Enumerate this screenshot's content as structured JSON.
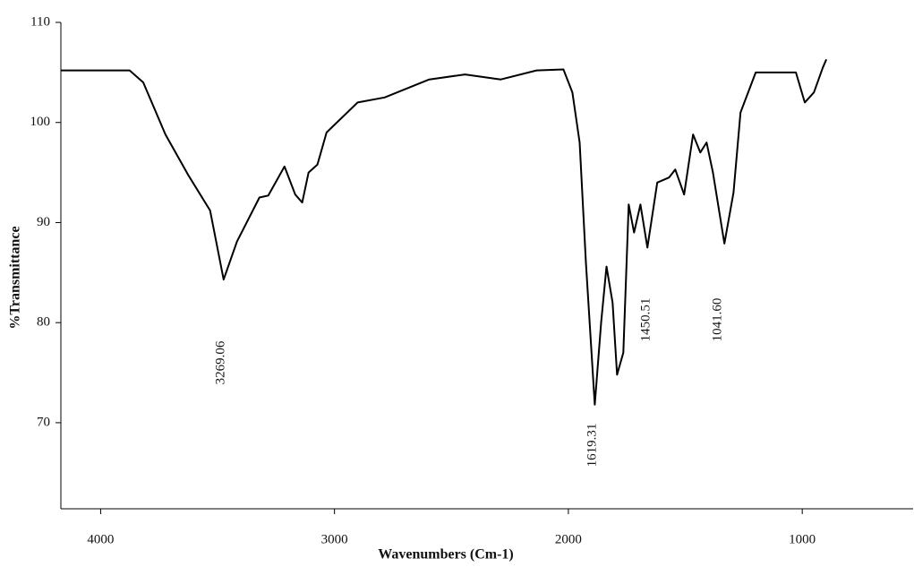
{
  "chart_data": {
    "type": "line",
    "xlabel": "Wavenumbers (Cm-1)",
    "ylabel": "%Transmittance",
    "x": [
      4170,
      3876,
      3818,
      3723,
      3627,
      3532,
      3474,
      3417,
      3321,
      3283,
      3214,
      3168,
      3138,
      3111,
      3073,
      3034,
      2901,
      2786,
      2595,
      2442,
      2289,
      2136,
      2021,
      1983,
      1952,
      1925,
      1887,
      1860,
      1837,
      1811,
      1792,
      1765,
      1742,
      1719,
      1692,
      1662,
      1620,
      1570,
      1543,
      1505,
      1467,
      1436,
      1409,
      1382,
      1333,
      1294,
      1264,
      1199,
      1027,
      989,
      950,
      912,
      897
    ],
    "series": [
      {
        "color": "#000000",
        "values": [
          105.2,
          105.2,
          104,
          98.8,
          94.8,
          91.2,
          84.3,
          88.1,
          92.5,
          92.7,
          95.6,
          92.8,
          92,
          95,
          95.8,
          99,
          102,
          102.5,
          104.3,
          104.8,
          104.3,
          105.2,
          105.3,
          103,
          98,
          86,
          71.8,
          80,
          85.6,
          82,
          74.8,
          77,
          91.8,
          89,
          91.8,
          87.5,
          94,
          94.5,
          95.3,
          92.8,
          98.8,
          97,
          98,
          95,
          87.9,
          93,
          101,
          105,
          105,
          102,
          103,
          105.5,
          106.3
        ]
      }
    ],
    "xlim": [
      4170,
      526
    ],
    "ylim": [
      61.4,
      110
    ],
    "xticks": [
      4000,
      3000,
      2000,
      1000
    ],
    "yticks": [
      70,
      80,
      90,
      100,
      110
    ],
    "annotations": [
      "3269.06",
      "1619.31",
      "1450.51",
      "1041.60"
    ]
  }
}
